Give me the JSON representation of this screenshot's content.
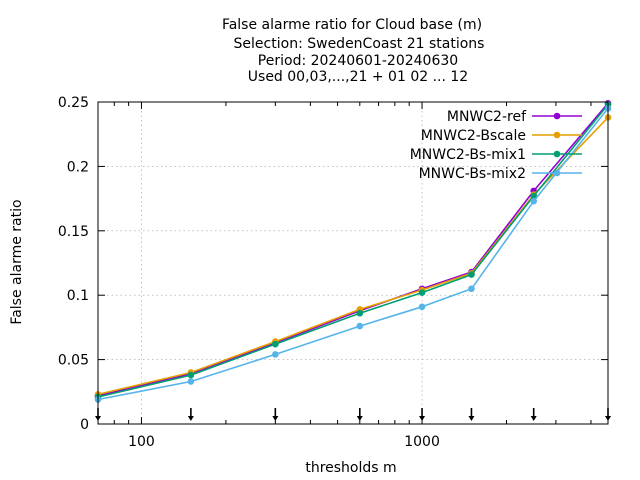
{
  "chart_data": {
    "type": "line",
    "title": [
      "False alarme ratio  for Cloud base (m)",
      "Selection: SwedenCoast     21 stations",
      "Period: 20240601-20240630",
      "Used 00,03,...,21 + 01 02 ... 12"
    ],
    "xlabel": "thresholds m",
    "ylabel": "False alarme ratio",
    "x_scale": "log",
    "xlim": [
      70,
      4600
    ],
    "ylim": [
      0,
      0.25
    ],
    "x_ticks": [
      100,
      1000
    ],
    "x_tick_labels": [
      "100",
      "1000"
    ],
    "y_ticks": [
      0,
      0.05,
      0.1,
      0.15,
      0.2,
      0.25
    ],
    "y_tick_labels": [
      "0",
      "0.05",
      "0.1",
      "0.15",
      "0.2",
      "0.25"
    ],
    "grid": true,
    "legend_position": "top-right",
    "threshold_markers_x": [
      70,
      150,
      300,
      600,
      1000,
      1500,
      2500,
      4600
    ],
    "series": [
      {
        "name": "MNWC2-ref",
        "color": "#9400d3",
        "marker": "dot",
        "x": [
          70,
          150,
          300,
          600,
          1000,
          1500,
          2500,
          4600
        ],
        "y": [
          0.022,
          0.039,
          0.063,
          0.088,
          0.105,
          0.118,
          0.181,
          0.249
        ]
      },
      {
        "name": "MNWC2-Bscale",
        "color": "#e69f00",
        "marker": "dot",
        "x": [
          70,
          150,
          300,
          600,
          1000,
          1500,
          2500,
          4600
        ],
        "y": [
          0.023,
          0.04,
          0.064,
          0.089,
          0.104,
          0.117,
          0.178,
          0.238
        ]
      },
      {
        "name": "MNWC2-Bs-mix1",
        "color": "#009e73",
        "marker": "dot",
        "x": [
          70,
          150,
          300,
          600,
          1000,
          1500,
          2500,
          4600
        ],
        "y": [
          0.021,
          0.038,
          0.062,
          0.086,
          0.102,
          0.116,
          0.177,
          0.248
        ]
      },
      {
        "name": "MNWC-Bs-mix2",
        "color": "#56b4e9",
        "marker": "dot",
        "x": [
          70,
          150,
          300,
          600,
          1000,
          1500,
          2500,
          4600
        ],
        "y": [
          0.019,
          0.033,
          0.054,
          0.076,
          0.091,
          0.105,
          0.173,
          0.245
        ]
      }
    ]
  }
}
